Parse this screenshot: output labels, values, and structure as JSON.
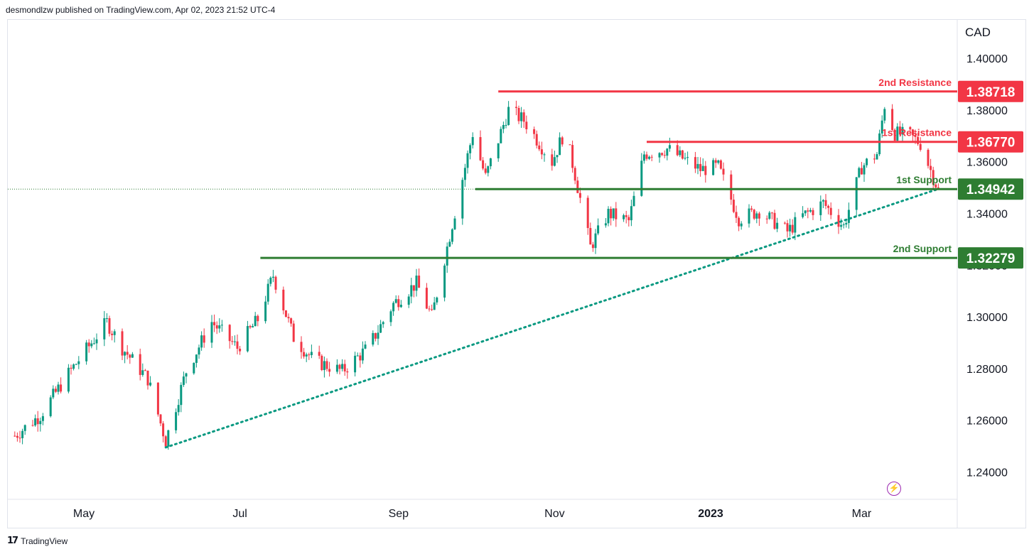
{
  "header": {
    "published": "desmondlzw published on TradingView.com, Apr 02, 2023 21:52 UTC-4"
  },
  "footer": {
    "brand": "TradingView",
    "logo_icon": "tradingview-logo-icon"
  },
  "colors": {
    "up": "#089981",
    "down": "#f23645",
    "resistance": "#f23645",
    "support": "#2e7d32",
    "trendline": "#089981",
    "lightning": "#9c27b0"
  },
  "chart_data": {
    "type": "candlestick",
    "currency": "CAD",
    "ylim": [
      1.232,
      1.408
    ],
    "y_ticks": [
      "1.40000",
      "1.38000",
      "1.36000",
      "1.34000",
      "1.32000",
      "1.30000",
      "1.28000",
      "1.26000",
      "1.24000"
    ],
    "x_ticks": [
      "May",
      "Jul",
      "Sep",
      "Nov",
      "2023",
      "Mar"
    ],
    "levels": [
      {
        "name": "2nd Resistance",
        "value": 1.38718,
        "label": "1.38718",
        "kind": "resistance"
      },
      {
        "name": "1st Resistance",
        "value": 1.3677,
        "label": "1.36770",
        "kind": "resistance"
      },
      {
        "name": "1st Support",
        "value": 1.34942,
        "label": "1.34942",
        "kind": "support"
      },
      {
        "name": "2nd Support",
        "value": 1.32279,
        "label": "1.32279",
        "kind": "support"
      }
    ],
    "trendline": {
      "from": {
        "date": "2022-06-02",
        "value": 1.2495
      },
      "to": {
        "date": "2023-03-31",
        "value": 1.3495
      }
    },
    "last_price": 1.3494,
    "close_path": [
      [
        "2022-04-04",
        1.254
      ],
      [
        "2022-04-14",
        1.262
      ],
      [
        "2022-04-25",
        1.278
      ],
      [
        "2022-05-10",
        1.298
      ],
      [
        "2022-05-16",
        1.288
      ],
      [
        "2022-05-26",
        1.276
      ],
      [
        "2022-06-02",
        1.252
      ],
      [
        "2022-06-10",
        1.279
      ],
      [
        "2022-06-20",
        1.298
      ],
      [
        "2022-06-30",
        1.288
      ],
      [
        "2022-07-08",
        1.299
      ],
      [
        "2022-07-14",
        1.316
      ],
      [
        "2022-07-22",
        1.292
      ],
      [
        "2022-07-30",
        1.283
      ],
      [
        "2022-08-10",
        1.279
      ],
      [
        "2022-08-20",
        1.288
      ],
      [
        "2022-08-30",
        1.305
      ],
      [
        "2022-09-08",
        1.313
      ],
      [
        "2022-09-14",
        1.3
      ],
      [
        "2022-09-22",
        1.336
      ],
      [
        "2022-09-30",
        1.371
      ],
      [
        "2022-10-05",
        1.354
      ],
      [
        "2022-10-14",
        1.38
      ],
      [
        "2022-10-20",
        1.376
      ],
      [
        "2022-10-31",
        1.36
      ],
      [
        "2022-11-05",
        1.372
      ],
      [
        "2022-11-09",
        1.355
      ],
      [
        "2022-11-15",
        1.327
      ],
      [
        "2022-11-22",
        1.34
      ],
      [
        "2022-11-30",
        1.337
      ],
      [
        "2022-12-06",
        1.363
      ],
      [
        "2022-12-15",
        1.365
      ],
      [
        "2022-12-28",
        1.357
      ],
      [
        "2023-01-04",
        1.358
      ],
      [
        "2023-01-12",
        1.338
      ],
      [
        "2023-01-20",
        1.341
      ],
      [
        "2023-01-31",
        1.333
      ],
      [
        "2023-02-06",
        1.339
      ],
      [
        "2023-02-14",
        1.344
      ],
      [
        "2023-02-22",
        1.335
      ],
      [
        "2023-03-01",
        1.358
      ],
      [
        "2023-03-07",
        1.363
      ],
      [
        "2023-03-10",
        1.382
      ],
      [
        "2023-03-14",
        1.371
      ],
      [
        "2023-03-20",
        1.37
      ],
      [
        "2023-03-24",
        1.367
      ],
      [
        "2023-03-31",
        1.349
      ]
    ]
  }
}
